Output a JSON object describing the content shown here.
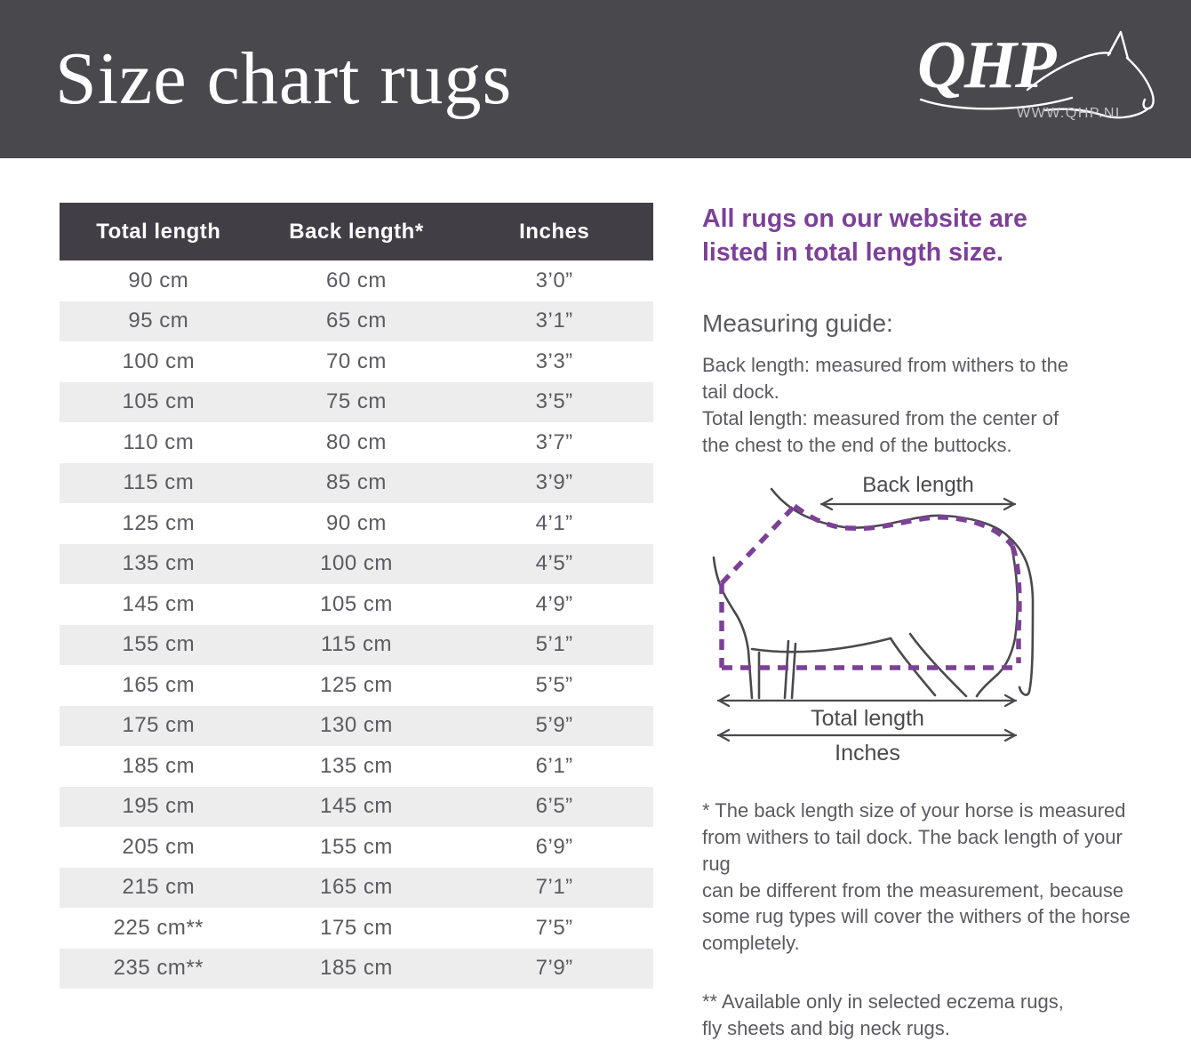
{
  "header": {
    "title": "Size chart rugs",
    "logo_text": "QHP",
    "logo_url": "WWW.QHP.NL"
  },
  "table": {
    "columns": [
      "Total length",
      "Back length*",
      "Inches"
    ],
    "rows": [
      [
        "90 cm",
        "60 cm",
        "3’0”"
      ],
      [
        "95 cm",
        "65 cm",
        "3’1”"
      ],
      [
        "100 cm",
        "70 cm",
        "3’3”"
      ],
      [
        "105 cm",
        "75 cm",
        "3’5”"
      ],
      [
        "110 cm",
        "80 cm",
        "3’7”"
      ],
      [
        "115 cm",
        "85 cm",
        "3’9”"
      ],
      [
        "125 cm",
        "90 cm",
        "4’1”"
      ],
      [
        "135 cm",
        "100 cm",
        "4’5”"
      ],
      [
        "145 cm",
        "105 cm",
        "4’9”"
      ],
      [
        "155 cm",
        "115 cm",
        "5’1”"
      ],
      [
        "165 cm",
        "125 cm",
        "5’5”"
      ],
      [
        "175 cm",
        "130 cm",
        "5’9”"
      ],
      [
        "185 cm",
        "135 cm",
        "6’1”"
      ],
      [
        "195 cm",
        "145 cm",
        "6’5”"
      ],
      [
        "205 cm",
        "155 cm",
        "6’9”"
      ],
      [
        "215 cm",
        "165 cm",
        "7’1”"
      ],
      [
        "225 cm**",
        "175 cm",
        "7’5”"
      ],
      [
        "235 cm**",
        "185 cm",
        "7’9”"
      ]
    ]
  },
  "info": {
    "intro": "All rugs on our website are\nlisted in total length size.",
    "guide_title": "Measuring guide:",
    "guide_body": "Back length: measured from withers to the\ntail dock.\nTotal length: measured from the center of\nthe chest to the end of the buttocks.",
    "footnote1": "* The back length size of your horse is measured\nfrom withers to tail dock. The back length of your rug\ncan be different from the measurement, because\nsome rug types will cover the withers of the horse\ncompletely.",
    "footnote2": "** Available only in selected eczema rugs,\nfly sheets and big neck rugs."
  },
  "diagram": {
    "back_length_label": "Back length",
    "total_length_label": "Total length",
    "inches_label": "Inches"
  },
  "colors": {
    "accent": "#7c4197",
    "band": "#49484d",
    "table_head": "#413f45",
    "row_alt": "#ededed",
    "text_gray": "#5b5a60",
    "line_gray": "#4a494e",
    "logo_sub": "#c3c3c7"
  }
}
